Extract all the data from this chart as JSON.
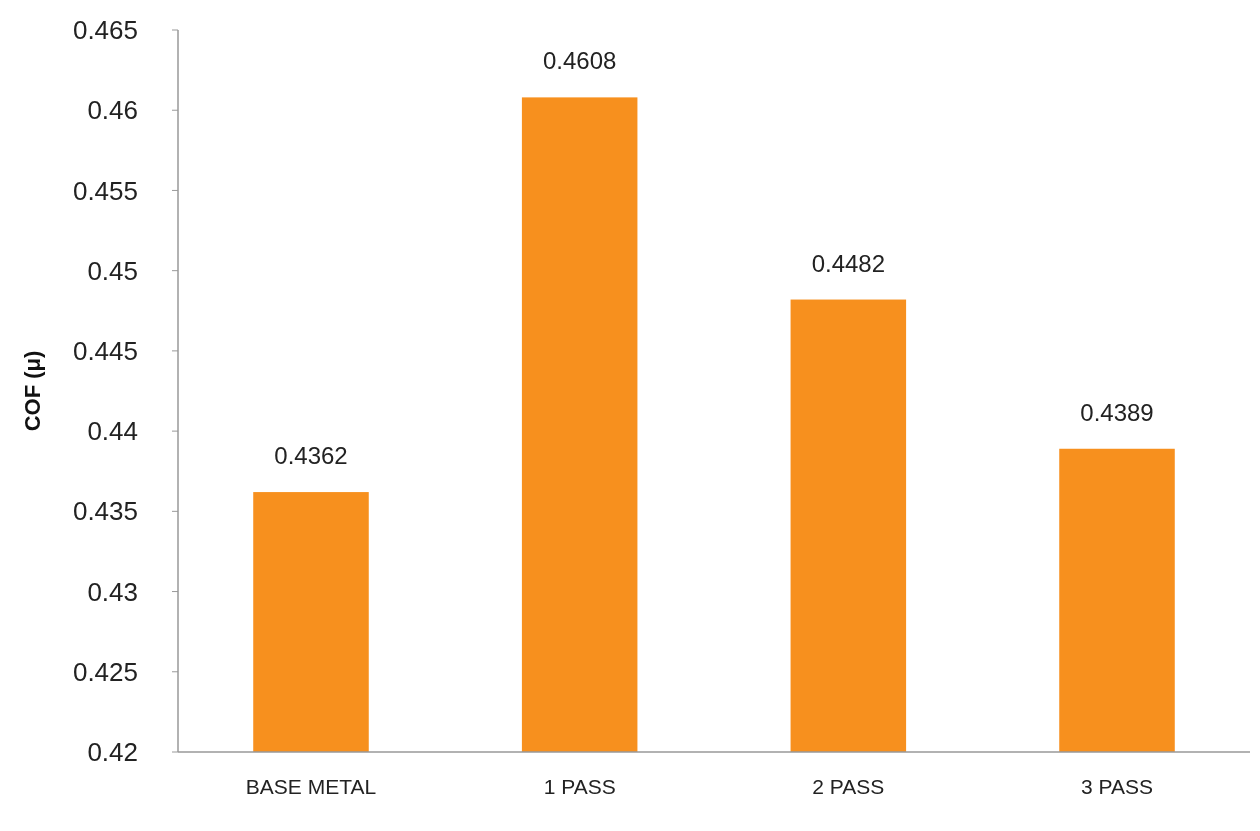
{
  "chart_data": {
    "type": "bar",
    "ylabel": "COF (μ)",
    "categories": [
      "BASE METAL",
      "1 PASS",
      "2 PASS",
      "3 PASS"
    ],
    "values": [
      0.4362,
      0.4608,
      0.4482,
      0.4389
    ],
    "color": "#f7901e",
    "ylim": [
      0.42,
      0.465
    ],
    "yticks": [
      0.42,
      0.425,
      0.43,
      0.435,
      0.44,
      0.445,
      0.45,
      0.455,
      0.46,
      0.465
    ],
    "data_labels": true
  }
}
